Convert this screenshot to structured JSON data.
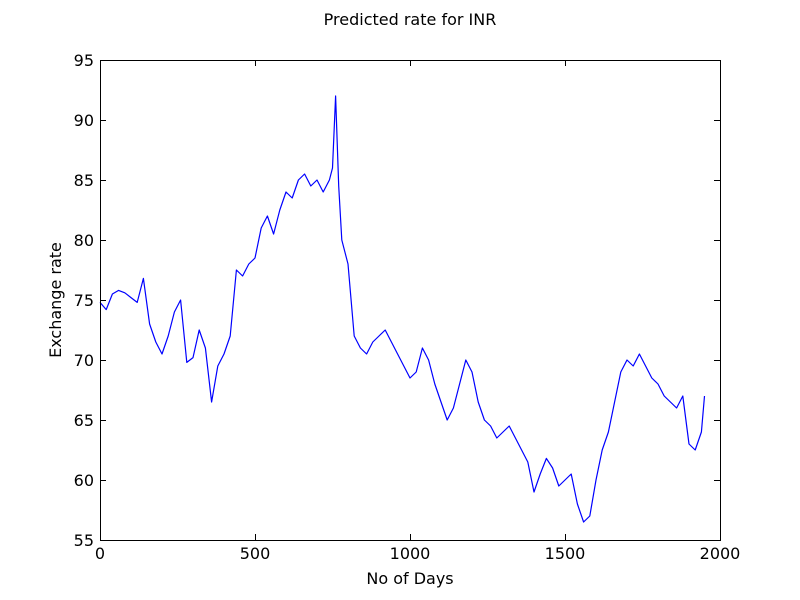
{
  "chart_data": {
    "type": "line",
    "title": "Predicted rate for INR",
    "xlabel": "No of Days",
    "ylabel": "Exchange rate",
    "xlim": [
      0,
      2000
    ],
    "ylim": [
      55,
      95
    ],
    "grid": false,
    "xticks": [
      0,
      500,
      1000,
      1500,
      2000
    ],
    "xtick_labels": [
      "0",
      "500",
      "1000",
      "1500",
      "2000"
    ],
    "yticks": [
      55,
      60,
      65,
      70,
      75,
      80,
      85,
      90,
      95
    ],
    "ytick_labels": [
      "55",
      "60",
      "65",
      "70",
      "75",
      "80",
      "85",
      "90",
      "95"
    ],
    "series": [
      {
        "color": "#0000ff",
        "x": [
          0,
          20,
          40,
          60,
          80,
          100,
          120,
          140,
          160,
          180,
          200,
          220,
          240,
          260,
          280,
          300,
          320,
          340,
          360,
          380,
          400,
          420,
          440,
          460,
          480,
          500,
          520,
          540,
          560,
          580,
          600,
          620,
          640,
          660,
          680,
          700,
          720,
          740,
          750,
          760,
          770,
          780,
          800,
          820,
          840,
          860,
          880,
          900,
          920,
          940,
          960,
          980,
          1000,
          1020,
          1040,
          1060,
          1080,
          1100,
          1120,
          1140,
          1160,
          1180,
          1200,
          1220,
          1240,
          1260,
          1280,
          1300,
          1320,
          1340,
          1360,
          1380,
          1400,
          1420,
          1440,
          1460,
          1480,
          1500,
          1520,
          1540,
          1560,
          1580,
          1600,
          1620,
          1640,
          1660,
          1680,
          1700,
          1720,
          1740,
          1760,
          1780,
          1800,
          1820,
          1840,
          1860,
          1880,
          1900,
          1920,
          1940,
          1950
        ],
        "y": [
          74.8,
          74.2,
          75.5,
          75.8,
          75.6,
          75.2,
          74.8,
          76.8,
          73.0,
          71.5,
          70.5,
          72.0,
          74.0,
          75.0,
          69.8,
          70.2,
          72.5,
          71.0,
          66.5,
          69.5,
          70.5,
          72.0,
          77.5,
          77.0,
          78.0,
          78.5,
          81.0,
          82.0,
          80.5,
          82.5,
          84.0,
          83.5,
          85.0,
          85.5,
          84.5,
          85.0,
          84.0,
          85.0,
          86.0,
          92.0,
          84.5,
          80.0,
          78.0,
          72.0,
          71.0,
          70.5,
          71.5,
          72.0,
          72.5,
          71.5,
          70.5,
          69.5,
          68.5,
          69.0,
          71.0,
          70.0,
          68.0,
          66.5,
          65.0,
          66.0,
          68.0,
          70.0,
          69.0,
          66.5,
          65.0,
          64.5,
          63.5,
          64.0,
          64.5,
          63.5,
          62.5,
          61.5,
          59.0,
          60.5,
          61.8,
          61.0,
          59.5,
          60.0,
          60.5,
          58.0,
          56.5,
          57.0,
          60.0,
          62.5,
          64.0,
          66.5,
          69.0,
          70.0,
          69.5,
          70.5,
          69.5,
          68.5,
          68.0,
          67.0,
          66.5,
          66.0,
          67.0,
          63.0,
          62.5,
          64.0,
          67.0
        ]
      }
    ]
  }
}
